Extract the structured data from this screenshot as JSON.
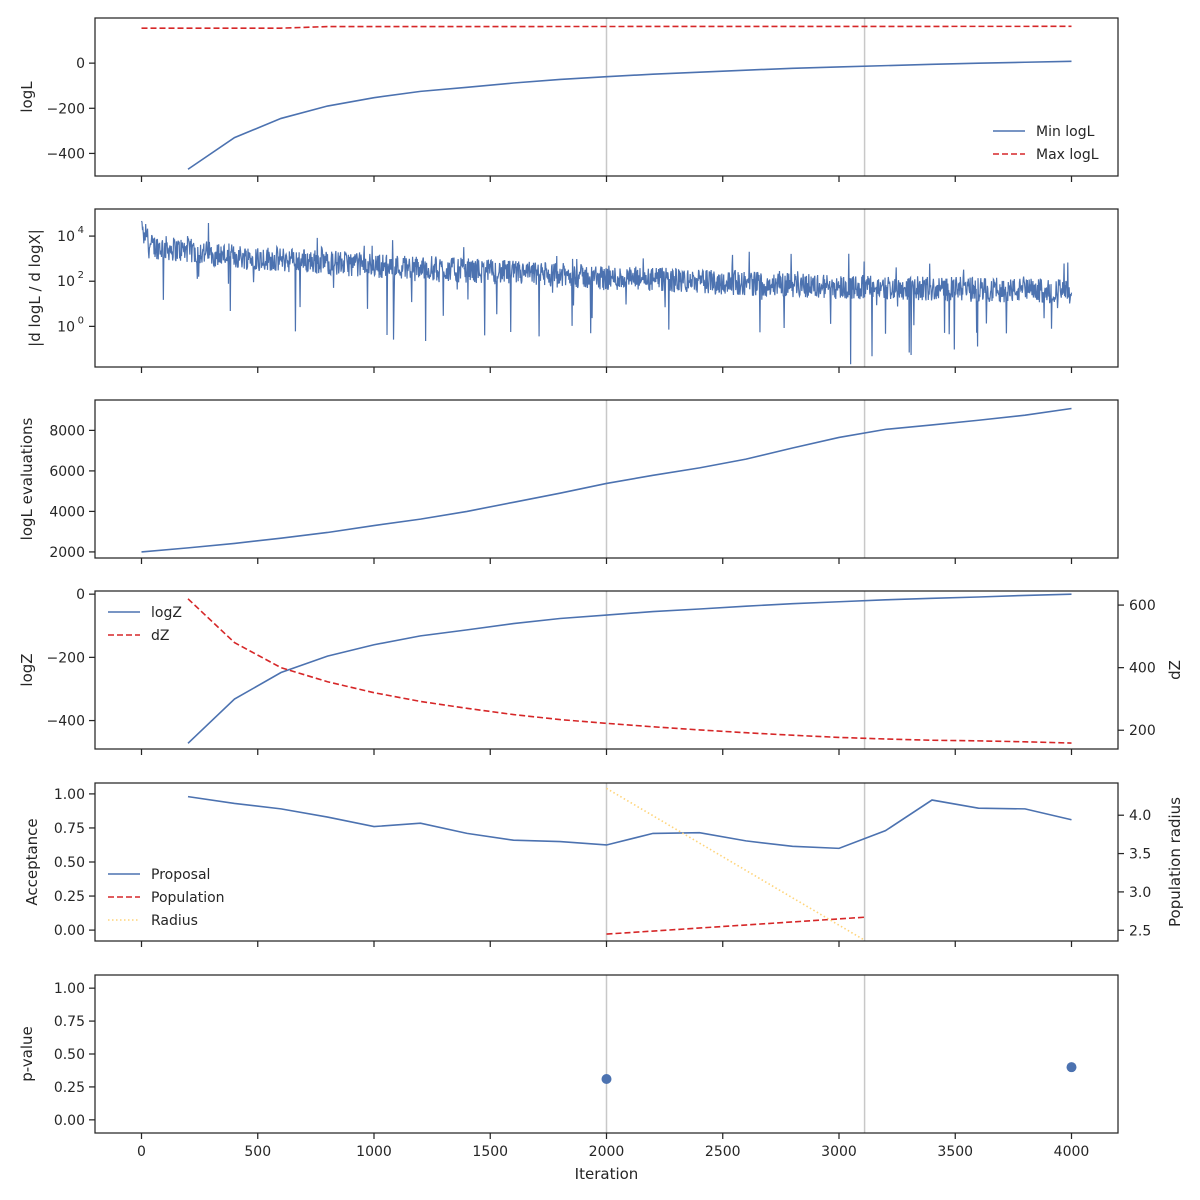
{
  "chart_data": [
    {
      "type": "line",
      "ylabel": "logL",
      "ylim": [
        -500,
        200
      ],
      "yticks": [
        {
          "value": -400,
          "label": "−400"
        },
        {
          "value": -200,
          "label": "−200"
        },
        {
          "value": 0,
          "label": "0"
        }
      ],
      "legend": "lower-right",
      "series": [
        {
          "name": "Min logL",
          "color": "#4c72b0",
          "dash": "solid",
          "x": [
            200,
            400,
            600,
            800,
            1000,
            1200,
            1400,
            1600,
            1800,
            2000,
            2200,
            2400,
            2600,
            2800,
            3000,
            3200,
            3400,
            3600,
            3800,
            4000
          ],
          "y": [
            -470,
            -330,
            -245,
            -190,
            -153,
            -125,
            -107,
            -88,
            -72,
            -60,
            -49,
            -40,
            -31,
            -23,
            -17,
            -11,
            -5,
            0,
            4,
            8
          ]
        },
        {
          "name": "Max logL",
          "color": "#d62728",
          "dash": "dashed",
          "x": [
            0,
            600,
            800,
            4000
          ],
          "y": [
            155,
            155,
            162,
            163
          ]
        }
      ]
    },
    {
      "type": "line",
      "ylabel": "|d logL / d logX|",
      "yscale": "log",
      "ylim_log10": [
        -1.8,
        5.2
      ],
      "yticks": [
        {
          "value": 0,
          "base": "10",
          "exp": "0"
        },
        {
          "value": 2,
          "base": "10",
          "exp": "2"
        },
        {
          "value": 4,
          "base": "10",
          "exp": "4"
        }
      ],
      "noisy": true,
      "series": [
        {
          "color": "#4c72b0",
          "trend_x": [
            0,
            400,
            1000,
            2000,
            3000,
            4000
          ],
          "trend_log10_y": [
            3.6,
            3.1,
            2.7,
            2.15,
            1.75,
            1.55
          ]
        }
      ]
    },
    {
      "type": "line",
      "ylabel": "logL evaluations",
      "ylim": [
        1700,
        9500
      ],
      "yticks": [
        {
          "value": 2000,
          "label": "2000"
        },
        {
          "value": 4000,
          "label": "4000"
        },
        {
          "value": 6000,
          "label": "6000"
        },
        {
          "value": 8000,
          "label": "8000"
        }
      ],
      "series": [
        {
          "color": "#4c72b0",
          "dash": "solid",
          "x": [
            0,
            200,
            400,
            600,
            800,
            1000,
            1200,
            1400,
            1600,
            1800,
            2000,
            2200,
            2400,
            2600,
            2800,
            3000,
            3200,
            3400,
            3600,
            3800,
            4000
          ],
          "y": [
            2000,
            2200,
            2420,
            2680,
            2960,
            3300,
            3620,
            4000,
            4450,
            4900,
            5380,
            5780,
            6150,
            6580,
            7130,
            7650,
            8050,
            8270,
            8500,
            8750,
            9080
          ]
        }
      ]
    },
    {
      "type": "line",
      "ylabel": "logZ",
      "ylabel_right": "dZ",
      "ylim": [
        -490,
        10
      ],
      "ylim_right": [
        140,
        645
      ],
      "yticks": [
        {
          "value": -400,
          "label": "−400"
        },
        {
          "value": -200,
          "label": "−200"
        },
        {
          "value": 0,
          "label": "0"
        }
      ],
      "yticks_right": [
        {
          "value": 200,
          "label": "200"
        },
        {
          "value": 400,
          "label": "400"
        },
        {
          "value": 600,
          "label": "600"
        }
      ],
      "legend": "upper-left",
      "series": [
        {
          "name": "logZ",
          "color": "#4c72b0",
          "dash": "solid",
          "axis": "left",
          "x": [
            200,
            400,
            600,
            800,
            1000,
            1200,
            1400,
            1600,
            1800,
            2000,
            2200,
            2400,
            2600,
            2800,
            3000,
            3200,
            3400,
            3600,
            3800,
            4000
          ],
          "y": [
            -472,
            -332,
            -248,
            -196,
            -160,
            -132,
            -113,
            -93,
            -77,
            -66,
            -55,
            -47,
            -38,
            -30,
            -24,
            -18,
            -13,
            -9,
            -4,
            0
          ]
        },
        {
          "name": "dZ",
          "color": "#d62728",
          "dash": "dashed",
          "axis": "right",
          "x": [
            200,
            400,
            600,
            800,
            1000,
            1200,
            1400,
            1600,
            1800,
            2000,
            2200,
            2400,
            2600,
            2800,
            3000,
            3200,
            3400,
            3600,
            3800,
            4000
          ],
          "y": [
            620,
            480,
            400,
            355,
            320,
            292,
            270,
            250,
            234,
            222,
            211,
            201,
            192,
            184,
            177,
            172,
            168,
            166,
            163,
            159
          ]
        }
      ]
    },
    {
      "type": "line",
      "ylabel": "Acceptance",
      "ylabel_right": "Population radius",
      "ylim": [
        -0.08,
        1.08
      ],
      "ylim_right": [
        2.36,
        4.42
      ],
      "yticks": [
        {
          "value": 0,
          "label": "0.00"
        },
        {
          "value": 0.25,
          "label": "0.25"
        },
        {
          "value": 0.5,
          "label": "0.50"
        },
        {
          "value": 0.75,
          "label": "0.75"
        },
        {
          "value": 1.0,
          "label": "1.00"
        }
      ],
      "yticks_right": [
        {
          "value": 2.5,
          "label": "2.5"
        },
        {
          "value": 3.0,
          "label": "3.0"
        },
        {
          "value": 3.5,
          "label": "3.5"
        },
        {
          "value": 4.0,
          "label": "4.0"
        }
      ],
      "legend": "lower-left",
      "series": [
        {
          "name": "Proposal",
          "color": "#4c72b0",
          "dash": "solid",
          "axis": "left",
          "x": [
            200,
            400,
            600,
            800,
            1000,
            1200,
            1400,
            1600,
            1800,
            2000,
            2200,
            2400,
            2600,
            2800,
            3000,
            3200,
            3400,
            3600,
            3800,
            4000
          ],
          "y": [
            0.98,
            0.93,
            0.89,
            0.83,
            0.76,
            0.785,
            0.71,
            0.66,
            0.65,
            0.625,
            0.71,
            0.715,
            0.655,
            0.615,
            0.6,
            0.73,
            0.955,
            0.895,
            0.89,
            0.81
          ]
        },
        {
          "name": "Population",
          "color": "#d62728",
          "dash": "dashed",
          "axis": "right",
          "x": [
            2000,
            3110
          ],
          "y": [
            2.45,
            2.67
          ]
        },
        {
          "name": "Radius",
          "color": "#ffd479",
          "dash": "dotted",
          "axis": "right",
          "x": [
            2000,
            3110
          ],
          "y": [
            4.35,
            2.37
          ]
        }
      ]
    },
    {
      "type": "scatter",
      "ylabel": "p-value",
      "xlabel": "Iteration",
      "ylim": [
        -0.1,
        1.1
      ],
      "yticks": [
        {
          "value": 0,
          "label": "0.00"
        },
        {
          "value": 0.25,
          "label": "0.25"
        },
        {
          "value": 0.5,
          "label": "0.50"
        },
        {
          "value": 0.75,
          "label": "0.75"
        },
        {
          "value": 1.0,
          "label": "1.00"
        }
      ],
      "series": [
        {
          "color": "#4c72b0",
          "x": [
            2000,
            4000
          ],
          "y": [
            0.31,
            0.4
          ]
        }
      ]
    }
  ],
  "shared": {
    "xlim": [
      -200,
      4200
    ],
    "xticks": [
      0,
      500,
      1000,
      1500,
      2000,
      2500,
      3000,
      3500,
      4000
    ],
    "vlines": [
      2000,
      3110
    ]
  }
}
